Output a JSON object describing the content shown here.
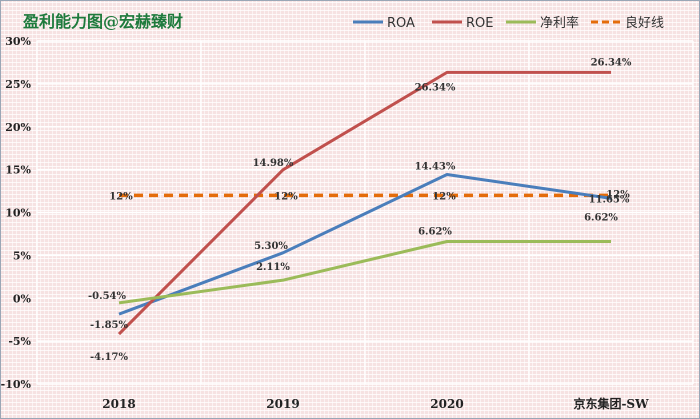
{
  "chart_data": {
    "type": "line",
    "title": "盈利能力图@宏赫臻财",
    "categories": [
      "2018",
      "2019",
      "2020",
      "京东集团-SW"
    ],
    "ylim": [
      -10,
      30
    ],
    "yticks": [
      -10,
      -5,
      0,
      5,
      10,
      15,
      20,
      25,
      30
    ],
    "yticks_labels": [
      "-10%",
      "-5%",
      "0%",
      "5%",
      "10%",
      "15%",
      "20%",
      "25%",
      "30%"
    ],
    "series": [
      {
        "name": "ROA",
        "color": "#4a7ebb",
        "dashed": false,
        "values": [
          -1.85,
          5.3,
          14.43,
          11.65
        ],
        "labels": [
          "-1.85%",
          "5.30%",
          "14.43%",
          "11.65%"
        ]
      },
      {
        "name": "ROE",
        "color": "#c0504d",
        "dashed": false,
        "values": [
          -4.17,
          14.98,
          26.34,
          26.34
        ],
        "labels": [
          "-4.17%",
          "14.98%",
          "26.34%",
          "26.34%"
        ]
      },
      {
        "name": "净利率",
        "color": "#9bbb59",
        "dashed": false,
        "values": [
          -0.54,
          2.11,
          6.62,
          6.62
        ],
        "labels": [
          "-0.54%",
          "2.11%",
          "6.62%",
          "6.62%"
        ]
      },
      {
        "name": "良好线",
        "color": "#e46c0a",
        "dashed": true,
        "values": [
          12,
          12,
          12,
          12
        ],
        "labels": [
          "12%",
          "12%",
          "12%",
          "12%"
        ]
      }
    ]
  }
}
